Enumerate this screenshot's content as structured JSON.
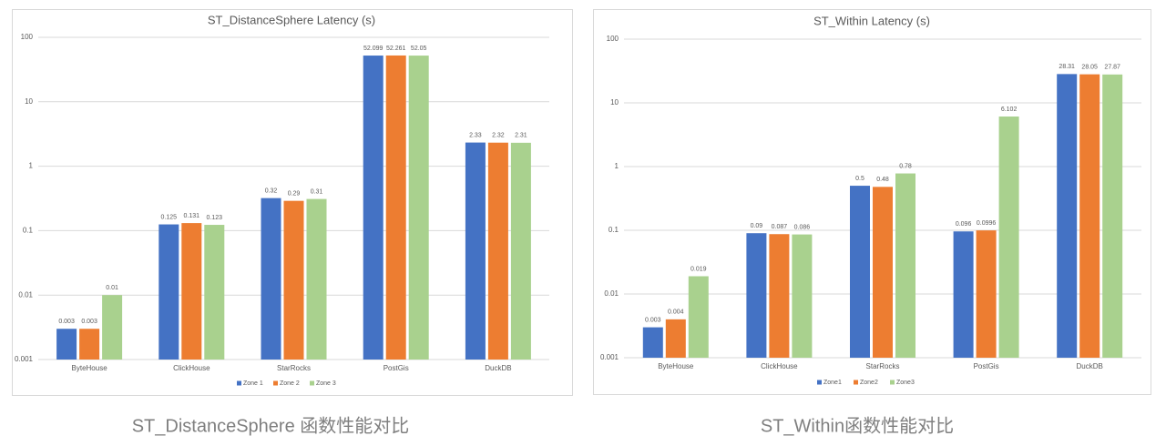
{
  "chart_data": [
    {
      "type": "bar",
      "title": "ST_DistanceSphere Latency (s)",
      "caption": "ST_DistanceSphere 函数性能对比",
      "categories": [
        "ByteHouse",
        "ClickHouse",
        "StarRocks",
        "PostGis",
        "DuckDB"
      ],
      "series": [
        {
          "name": "Zone 1",
          "color": "#4472c4",
          "values": [
            0.003,
            0.125,
            0.32,
            52.099,
            2.33
          ]
        },
        {
          "name": "Zone 2",
          "color": "#ed7d31",
          "values": [
            0.003,
            0.131,
            0.29,
            52.261,
            2.32
          ]
        },
        {
          "name": "Zone 3",
          "color": "#a9d18e",
          "values": [
            0.01,
            0.123,
            0.31,
            52.05,
            2.31
          ]
        }
      ],
      "ylim": [
        0.001,
        100
      ],
      "yticks": [
        0.001,
        0.01,
        0.1,
        1,
        10,
        100
      ],
      "log_scale": true,
      "grid": true,
      "legend": "bottom"
    },
    {
      "type": "bar",
      "title": "ST_Within Latency (s)",
      "caption": "ST_Within函数性能对比",
      "categories": [
        "ByteHouse",
        "ClickHouse",
        "StarRocks",
        "PostGis",
        "DuckDB"
      ],
      "series": [
        {
          "name": "Zone1",
          "color": "#4472c4",
          "values": [
            0.003,
            0.09,
            0.5,
            0.096,
            28.31
          ]
        },
        {
          "name": "Zone2",
          "color": "#ed7d31",
          "values": [
            0.004,
            0.087,
            0.48,
            0.0996,
            28.05
          ]
        },
        {
          "name": "Zone3",
          "color": "#a9d18e",
          "values": [
            0.019,
            0.086,
            0.78,
            6.102,
            27.87
          ]
        }
      ],
      "ylim": [
        0.001,
        100
      ],
      "yticks": [
        0.001,
        0.01,
        0.1,
        1,
        10,
        100
      ],
      "log_scale": true,
      "grid": true,
      "legend": "bottom"
    }
  ]
}
